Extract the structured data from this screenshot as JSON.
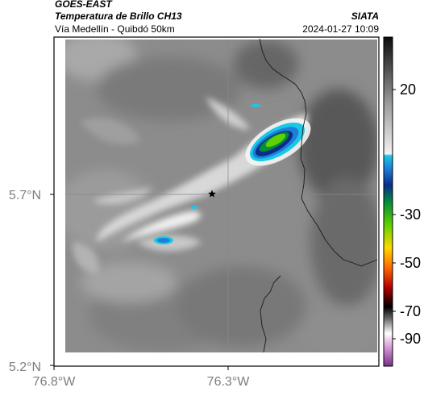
{
  "header": {
    "satellite": "GOES-EAST",
    "product": "Temperatura de Brillo CH13",
    "region": "Vía Medellín - Quibdó 50km",
    "agency": "SIATA",
    "datetime": "2024-01-27 10:09"
  },
  "axes": {
    "x_ticks": [
      "76.8°W",
      "76.3°W"
    ],
    "y_ticks": [
      "5.7°N",
      "5.2°N"
    ]
  },
  "colorbar": {
    "ticks": [
      "20",
      "-30",
      "-50",
      "-70",
      "-90"
    ]
  },
  "colors": {
    "frame": "#000000",
    "tick_label": "#7d7d7d",
    "border_line": "#1a1a1a"
  },
  "markers": {
    "star": "star-marker"
  }
}
